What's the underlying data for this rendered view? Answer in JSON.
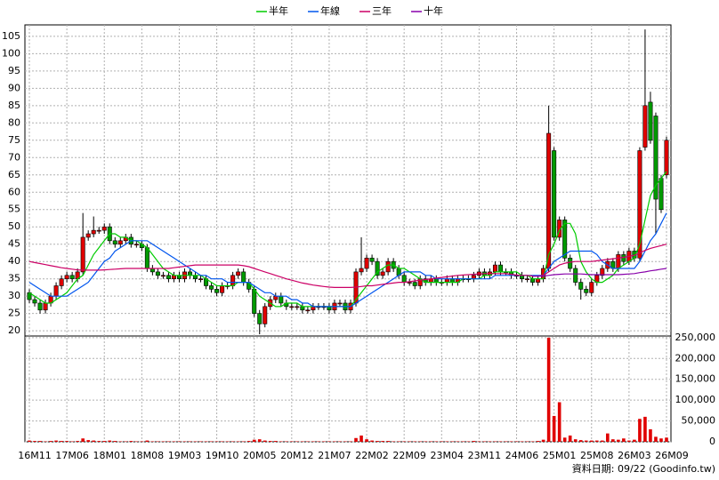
{
  "chart_data": {
    "type": "candlestick",
    "categories": [
      "16M11",
      null,
      null,
      null,
      null,
      null,
      null,
      "17M06",
      null,
      null,
      null,
      null,
      null,
      null,
      "18M01",
      null,
      null,
      null,
      null,
      null,
      null,
      "18M08",
      null,
      null,
      null,
      null,
      null,
      null,
      "19M03",
      null,
      null,
      null,
      null,
      null,
      null,
      "19M10",
      null,
      null,
      null,
      null,
      null,
      null,
      "20M05",
      null,
      null,
      null,
      null,
      null,
      null,
      "20M12",
      null,
      null,
      null,
      null,
      null,
      null,
      "21M07",
      null,
      null,
      null,
      null,
      null,
      null,
      "22M02",
      null,
      null,
      null,
      null,
      null,
      null,
      "22M09",
      null,
      null,
      null,
      null,
      null,
      null,
      "23M04",
      null,
      null,
      null,
      null,
      null,
      null,
      "23M11",
      null,
      null,
      null,
      null,
      null,
      null,
      "24M06",
      null,
      null,
      null,
      null,
      null,
      null,
      "25M01",
      null,
      null,
      null,
      null,
      null,
      null,
      "25M08",
      null,
      null,
      null,
      null,
      null,
      null,
      "26M03",
      null,
      null,
      null,
      null,
      null,
      null,
      "26M09"
    ],
    "open": [
      31,
      29,
      28,
      26,
      28,
      30,
      33,
      35,
      36,
      35,
      37,
      47,
      48,
      49,
      49,
      50,
      46,
      45,
      46,
      47,
      45,
      45,
      44,
      38,
      37,
      36,
      36,
      35,
      36,
      35,
      37,
      36,
      35,
      35,
      33,
      32,
      31,
      33,
      33,
      36,
      37,
      34,
      32,
      25,
      22,
      27,
      29,
      30,
      28,
      27,
      27,
      27,
      26,
      26,
      27,
      27,
      27,
      26,
      28,
      28,
      26,
      28,
      37,
      38,
      41,
      40,
      36,
      37,
      40,
      38,
      36,
      34,
      34,
      33,
      35,
      34,
      35,
      34,
      34,
      35,
      34,
      35,
      35,
      35,
      36,
      37,
      36,
      37,
      39,
      37,
      37,
      36,
      36,
      35,
      35,
      34,
      35,
      38,
      72,
      47,
      52,
      41,
      38,
      34,
      32,
      31,
      34,
      36,
      38,
      40,
      38,
      42,
      40,
      43,
      41,
      73,
      86,
      82,
      64,
      65
    ],
    "high": [
      32,
      30,
      29,
      29,
      31,
      34,
      36,
      37,
      37,
      38,
      54,
      49,
      53,
      50,
      51,
      51,
      47,
      47,
      48,
      48,
      46,
      46,
      45,
      39,
      38,
      37,
      37,
      37,
      37,
      38,
      38,
      37,
      36,
      36,
      34,
      33,
      34,
      34,
      37,
      38,
      38,
      35,
      33,
      26,
      28,
      30,
      31,
      31,
      29,
      28,
      28,
      28,
      27,
      28,
      28,
      28,
      28,
      29,
      29,
      29,
      29,
      38,
      47,
      42,
      42,
      41,
      38,
      41,
      41,
      39,
      37,
      35,
      35,
      36,
      36,
      36,
      36,
      35,
      36,
      36,
      36,
      36,
      36,
      37,
      38,
      38,
      38,
      40,
      40,
      38,
      38,
      37,
      37,
      36,
      36,
      36,
      39,
      85,
      73,
      53,
      53,
      42,
      39,
      35,
      33,
      35,
      37,
      39,
      41,
      41,
      43,
      43,
      44,
      44,
      73,
      107,
      89,
      83,
      65,
      76
    ],
    "low": [
      28,
      27,
      25,
      25,
      27,
      29,
      32,
      34,
      34,
      34,
      36,
      46,
      47,
      48,
      48,
      45,
      44,
      44,
      45,
      44,
      44,
      43,
      37,
      36,
      35,
      35,
      34,
      34,
      34,
      34,
      35,
      34,
      34,
      32,
      31,
      30,
      30,
      32,
      32,
      35,
      33,
      31,
      24,
      19,
      21,
      26,
      28,
      27,
      26,
      26,
      26,
      25,
      25,
      25,
      26,
      26,
      25,
      25,
      27,
      25,
      25,
      27,
      36,
      37,
      39,
      35,
      35,
      36,
      37,
      35,
      33,
      33,
      32,
      32,
      33,
      33,
      33,
      33,
      33,
      33,
      33,
      34,
      34,
      34,
      35,
      35,
      35,
      36,
      36,
      36,
      35,
      35,
      34,
      34,
      33,
      33,
      34,
      37,
      46,
      46,
      40,
      37,
      33,
      29,
      30,
      30,
      33,
      35,
      37,
      37,
      37,
      39,
      39,
      40,
      40,
      72,
      74,
      48,
      54,
      64
    ],
    "close": [
      29,
      28,
      26,
      28,
      30,
      33,
      35,
      36,
      35,
      37,
      47,
      48,
      49,
      49,
      50,
      46,
      45,
      46,
      47,
      45,
      45,
      44,
      38,
      37,
      36,
      36,
      35,
      36,
      35,
      37,
      36,
      35,
      35,
      33,
      32,
      31,
      33,
      33,
      36,
      37,
      34,
      32,
      25,
      22,
      27,
      29,
      30,
      28,
      27,
      27,
      27,
      26,
      26,
      27,
      27,
      27,
      26,
      28,
      28,
      26,
      28,
      37,
      38,
      41,
      40,
      36,
      37,
      40,
      38,
      36,
      34,
      34,
      33,
      35,
      34,
      35,
      34,
      34,
      35,
      34,
      35,
      35,
      35,
      36,
      37,
      36,
      37,
      39,
      37,
      37,
      36,
      36,
      35,
      35,
      34,
      35,
      38,
      77,
      47,
      52,
      41,
      38,
      34,
      32,
      31,
      34,
      36,
      38,
      40,
      38,
      42,
      40,
      43,
      41,
      72,
      85,
      75,
      58,
      55,
      75
    ],
    "volume": [
      3000,
      2000,
      2000,
      1000,
      2000,
      3000,
      2000,
      2000,
      1000,
      2000,
      8000,
      4000,
      3000,
      2000,
      2000,
      3000,
      2000,
      1000,
      1000,
      2000,
      1000,
      1000,
      3000,
      1000,
      1000,
      1000,
      1000,
      1000,
      1000,
      1000,
      1000,
      1000,
      1000,
      1000,
      1000,
      1000,
      1000,
      1000,
      1000,
      1000,
      1000,
      2000,
      5000,
      6000,
      3000,
      2000,
      2000,
      1000,
      1000,
      1000,
      1000,
      1000,
      1000,
      1000,
      1000,
      1000,
      1000,
      1000,
      1000,
      1000,
      1000,
      9000,
      15000,
      6000,
      3000,
      2000,
      2000,
      2000,
      1000,
      1000,
      1000,
      1000,
      1000,
      1000,
      1000,
      1000,
      1000,
      1000,
      1000,
      1000,
      1000,
      1000,
      1000,
      2000,
      1000,
      1000,
      1000,
      1000,
      1000,
      1000,
      1000,
      1000,
      1000,
      1000,
      1000,
      2000,
      5000,
      250000,
      62000,
      95000,
      10000,
      15000,
      6000,
      4000,
      3000,
      3000,
      3000,
      3000,
      20000,
      6000,
      5000,
      8000,
      3000,
      5000,
      55000,
      60000,
      30000,
      12000,
      8000,
      10000
    ],
    "up_color": "#e00000",
    "down_color": "#009a00",
    "volume_color": "#e00000",
    "series": [
      {
        "name": "半年",
        "color": "#00cc00",
        "values": [
          31,
          30,
          29,
          28,
          28,
          29,
          30,
          31,
          33,
          35,
          36,
          39,
          42,
          44,
          46,
          48,
          48,
          47,
          47,
          46,
          46,
          45,
          44,
          42,
          40,
          38,
          37,
          36,
          36,
          36,
          36,
          36,
          36,
          35,
          34,
          33,
          33,
          33,
          33,
          34,
          34,
          34,
          32,
          30,
          29,
          28,
          27,
          27,
          28,
          28,
          28,
          27,
          27,
          27,
          27,
          27,
          27,
          27,
          27,
          27,
          27,
          29,
          31,
          33,
          35,
          37,
          38,
          39,
          39,
          38,
          38,
          37,
          36,
          35,
          34,
          34,
          34,
          34,
          34,
          34,
          34,
          35,
          35,
          35,
          35,
          36,
          36,
          37,
          37,
          37,
          37,
          37,
          36,
          36,
          35,
          35,
          35,
          42,
          45,
          49,
          51,
          51,
          48,
          40,
          37,
          35,
          34,
          34,
          35,
          36,
          38,
          39,
          40,
          41,
          45,
          52,
          59,
          62,
          64,
          66
        ]
      },
      {
        "name": "年線",
        "color": "#0055ee",
        "values": [
          34,
          33,
          32,
          31,
          30,
          30,
          30,
          30,
          31,
          32,
          33,
          34,
          36,
          38,
          40,
          41,
          43,
          44,
          45,
          46,
          46,
          46,
          46,
          45,
          44,
          43,
          42,
          41,
          40,
          39,
          38,
          37,
          36,
          36,
          35,
          35,
          35,
          34,
          34,
          34,
          34,
          34,
          33,
          32,
          31,
          31,
          30,
          30,
          30,
          29,
          29,
          28,
          28,
          27,
          27,
          27,
          27,
          27,
          27,
          27,
          27,
          28,
          29,
          30,
          31,
          32,
          33,
          34,
          35,
          36,
          37,
          37,
          37,
          37,
          36,
          36,
          35,
          35,
          35,
          35,
          35,
          35,
          35,
          35,
          35,
          35,
          35,
          36,
          36,
          36,
          36,
          36,
          36,
          36,
          36,
          36,
          36,
          38,
          40,
          41,
          42,
          43,
          43,
          43,
          43,
          43,
          42,
          40,
          39,
          38,
          38,
          38,
          38,
          38,
          40,
          43,
          46,
          48,
          51,
          54
        ]
      },
      {
        "name": "三年",
        "color": "#cc0066",
        "values": [
          40,
          39.7,
          39.4,
          39.1,
          38.8,
          38.5,
          38.2,
          38,
          37.8,
          37.6,
          37.5,
          37.5,
          37.5,
          37.5,
          37.6,
          37.7,
          37.8,
          37.9,
          38,
          38,
          38,
          38,
          38,
          38,
          38,
          38,
          38,
          38.2,
          38.4,
          38.6,
          38.8,
          39,
          39,
          39,
          39,
          39,
          39,
          39,
          39,
          39,
          38.8,
          38.5,
          38,
          37.5,
          37,
          36.5,
          36,
          35.5,
          35,
          34.6,
          34.2,
          33.8,
          33.5,
          33.2,
          33,
          32.8,
          32.6,
          32.5,
          32.5,
          32.5,
          32.5,
          32.6,
          32.8,
          33,
          33,
          33.2,
          33.4,
          33.6,
          33.8,
          34,
          34,
          34.2,
          34.4,
          34.6,
          34.8,
          35,
          35.2,
          35.4,
          35.6,
          35.8,
          36,
          36.1,
          36.2,
          36.3,
          36.4,
          36.5,
          36.5,
          36.5,
          36.5,
          36.5,
          36.3,
          36.1,
          36,
          36,
          35.8,
          35.8,
          36,
          37,
          38,
          39,
          39.5,
          39.8,
          40,
          40,
          40,
          40,
          40.2,
          40.4,
          40.6,
          40.8,
          41,
          41.2,
          41.5,
          41.8,
          42.5,
          43.2,
          43.8,
          44.2,
          44.6,
          45
        ]
      },
      {
        "name": "十年",
        "color": "#8800aa",
        "values": [
          null,
          null,
          null,
          null,
          null,
          null,
          null,
          null,
          null,
          null,
          null,
          null,
          null,
          null,
          null,
          null,
          null,
          null,
          null,
          null,
          null,
          null,
          null,
          null,
          null,
          null,
          null,
          null,
          null,
          null,
          null,
          null,
          null,
          null,
          null,
          null,
          null,
          null,
          null,
          null,
          null,
          null,
          null,
          null,
          null,
          null,
          null,
          null,
          null,
          null,
          null,
          null,
          null,
          null,
          null,
          null,
          null,
          null,
          null,
          null,
          null,
          null,
          null,
          null,
          null,
          null,
          null,
          null,
          null,
          null,
          null,
          null,
          null,
          null,
          null,
          null,
          null,
          null,
          null,
          null,
          null,
          null,
          null,
          null,
          null,
          null,
          null,
          null,
          null,
          null,
          null,
          null,
          null,
          null,
          35.8,
          35.8,
          35.8,
          36,
          36.2,
          36.3,
          36.4,
          36.4,
          36.4,
          36.4,
          36.3,
          36.2,
          36.2,
          36.2,
          36.2,
          36.2,
          36.2,
          36.3,
          36.4,
          36.5,
          36.8,
          37,
          37.3,
          37.5,
          37.8,
          38
        ]
      }
    ],
    "ylim": [
      18.5,
      108.3
    ],
    "yticks": [
      20,
      25,
      30,
      35,
      40,
      45,
      50,
      55,
      60,
      65,
      70,
      75,
      80,
      85,
      90,
      95,
      100,
      105
    ],
    "y2lim": [
      0,
      254000
    ],
    "y2ticks": [
      0,
      {
        "value": 50000,
        "label": "50,000"
      },
      {
        "value": 100000,
        "label": "100,000"
      },
      {
        "value": 150000,
        "label": "150,000"
      },
      {
        "value": 200000,
        "label": "200,000"
      },
      {
        "value": 250000,
        "label": "250,000"
      }
    ],
    "grid": true,
    "footer": "資料日期: 09/22 (Goodinfo.tw)"
  }
}
